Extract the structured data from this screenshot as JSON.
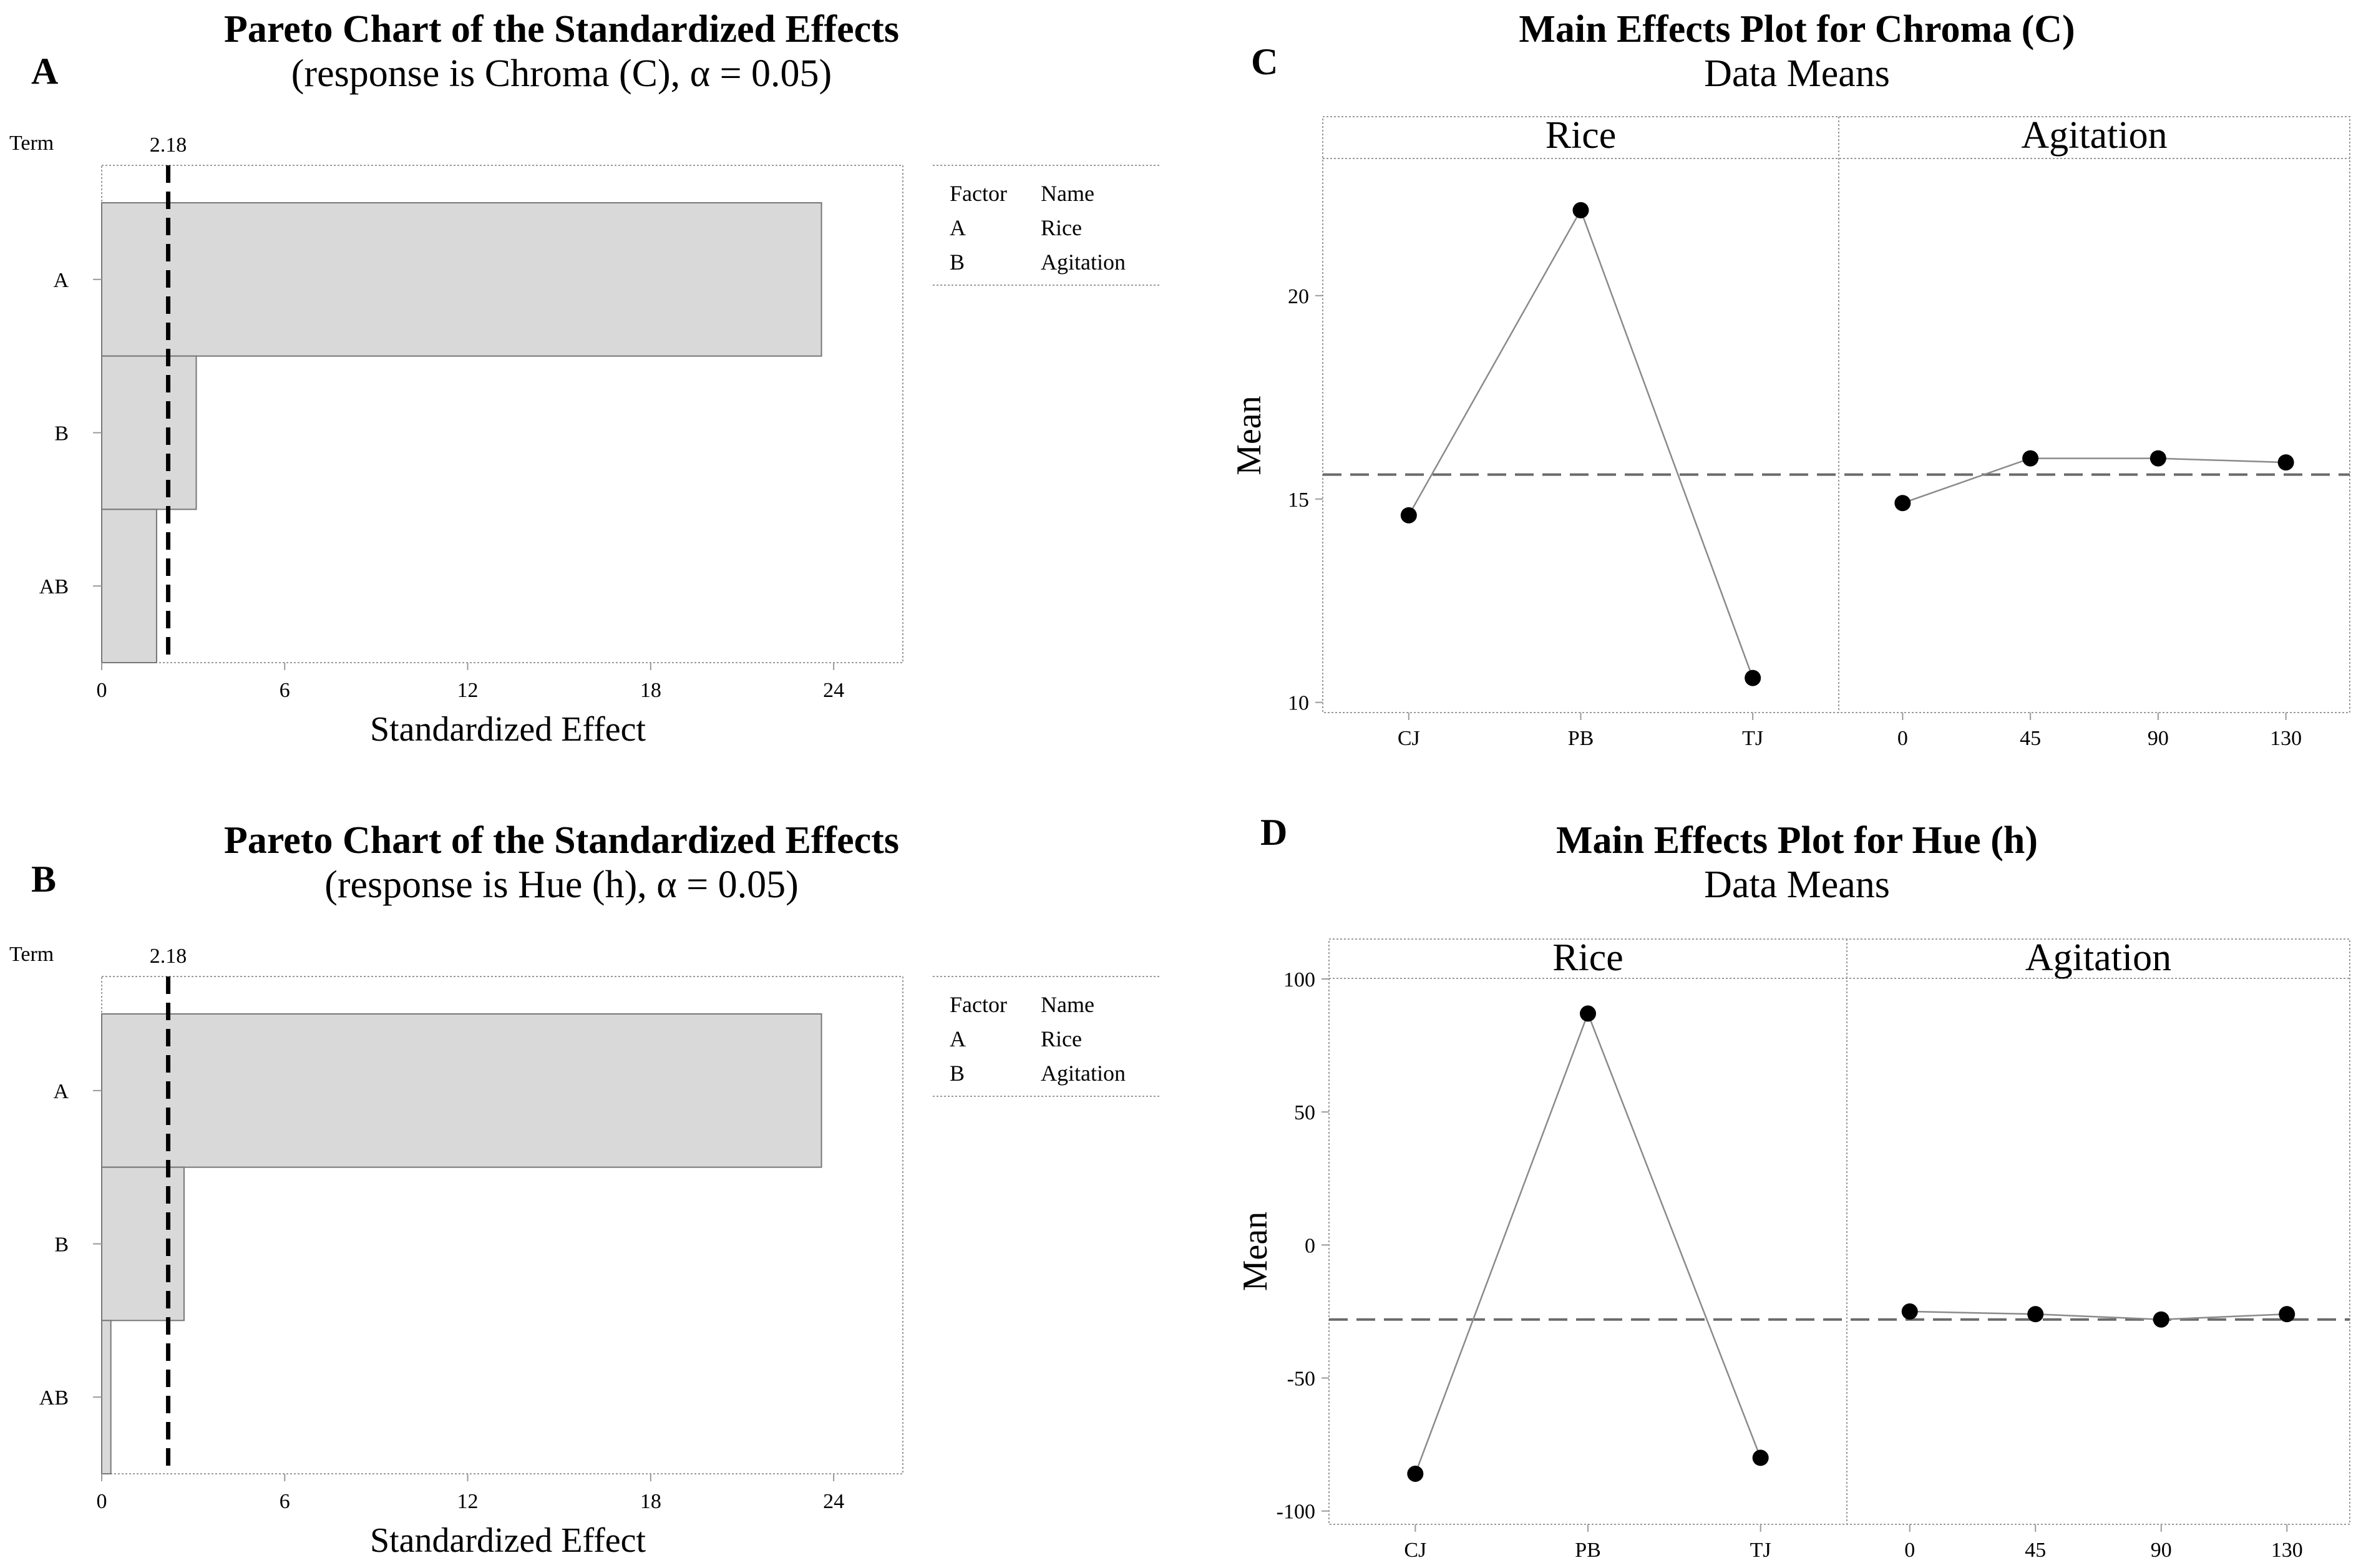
{
  "colors": {
    "bar_fill": "#d9d9d9",
    "frame": "#9a9a9a",
    "line": "#8a8a8a",
    "dot": "#000000",
    "ref": "#000000"
  },
  "chart_data": [
    {
      "id": "pareto-chroma",
      "type": "bar",
      "orientation": "horizontal",
      "panel_letter": "A",
      "title": "Pareto Chart of the Standardized Effects",
      "subtitle": "(response is Chroma (C), α = 0.05)",
      "term_label": "Term",
      "categories": [
        "A",
        "B",
        "AB"
      ],
      "values": [
        23.6,
        3.1,
        1.8
      ],
      "xlabel": "Standardized Effect",
      "xlim": [
        0,
        25
      ],
      "xticks": [
        0,
        6,
        12,
        18,
        24
      ],
      "reference_value": 2.18,
      "reference_label": "2.18",
      "legend": {
        "headers": [
          "Factor",
          "Name"
        ],
        "rows": [
          [
            "A",
            "Rice"
          ],
          [
            "B",
            "Agitation"
          ]
        ]
      }
    },
    {
      "id": "pareto-hue",
      "type": "bar",
      "orientation": "horizontal",
      "panel_letter": "B",
      "title": "Pareto Chart of the Standardized Effects",
      "subtitle": "(response is Hue (h), α = 0.05)",
      "term_label": "Term",
      "categories": [
        "A",
        "B",
        "AB"
      ],
      "values": [
        23.6,
        2.7,
        0.3
      ],
      "xlabel": "Standardized Effect",
      "xlim": [
        0,
        25
      ],
      "xticks": [
        0,
        6,
        12,
        18,
        24
      ],
      "reference_value": 2.18,
      "reference_label": "2.18",
      "legend": {
        "headers": [
          "Factor",
          "Name"
        ],
        "rows": [
          [
            "A",
            "Rice"
          ],
          [
            "B",
            "Agitation"
          ]
        ]
      }
    },
    {
      "id": "main-effects-chroma",
      "type": "line",
      "panel_letter": "C",
      "title": "Main Effects Plot for Chroma (C)",
      "subtitle": "Data Means",
      "ylabel": "Mean",
      "ylim": [
        9.75,
        24.4
      ],
      "yticks": [
        10,
        15,
        20
      ],
      "grand_mean": 15.6,
      "panels": [
        {
          "name": "Rice",
          "categories": [
            "CJ",
            "PB",
            "TJ"
          ],
          "values": [
            14.6,
            22.1,
            10.6
          ]
        },
        {
          "name": "Agitation",
          "categories": [
            "0",
            "45",
            "90",
            "130"
          ],
          "values": [
            14.9,
            16.0,
            16.0,
            15.9
          ]
        }
      ]
    },
    {
      "id": "main-effects-hue",
      "type": "line",
      "panel_letter": "D",
      "title": "Main Effects Plot for Hue (h)",
      "subtitle": "Data Means",
      "ylabel": "Mean",
      "ylim": [
        -105,
        115
      ],
      "yticks": [
        -100,
        -50,
        0,
        50,
        100
      ],
      "grand_mean": -28,
      "panels": [
        {
          "name": "Rice",
          "categories": [
            "CJ",
            "PB",
            "TJ"
          ],
          "values": [
            -86,
            87,
            -80
          ]
        },
        {
          "name": "Agitation",
          "categories": [
            "0",
            "45",
            "90",
            "130"
          ],
          "values": [
            -25,
            -26,
            -28,
            -26
          ]
        }
      ]
    }
  ]
}
